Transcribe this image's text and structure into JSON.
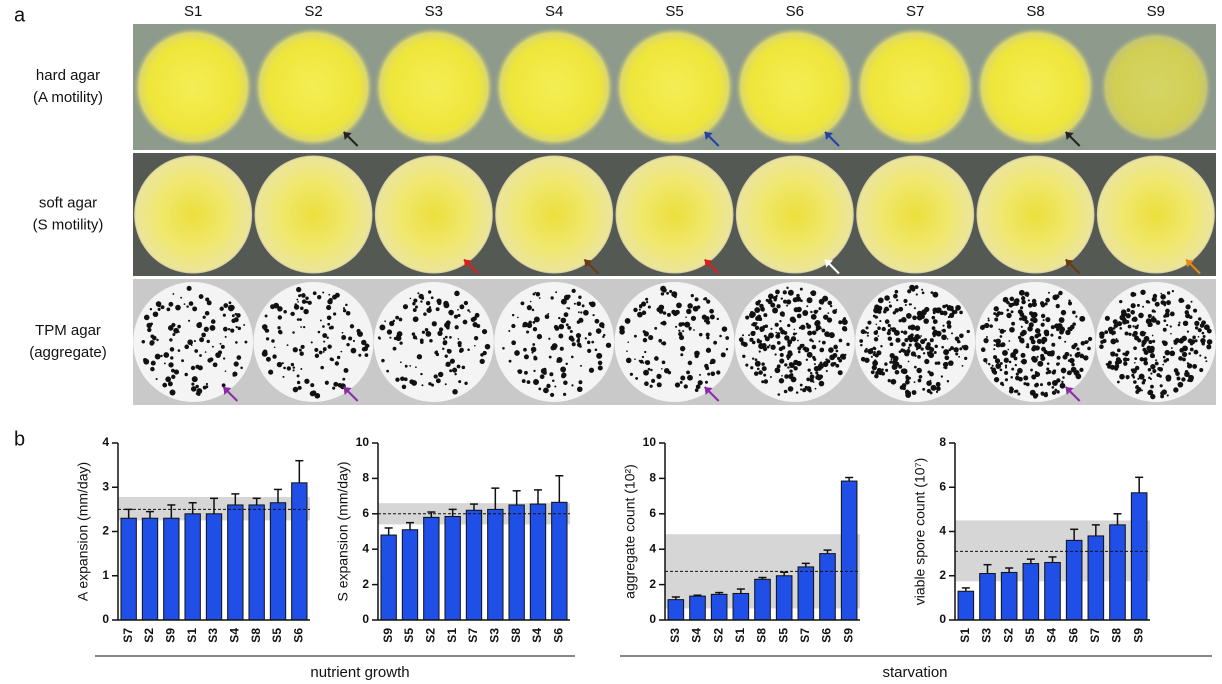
{
  "figure": {
    "panel_a": "a",
    "panel_b": "b",
    "columns": [
      "S1",
      "S2",
      "S3",
      "S4",
      "S5",
      "S6",
      "S7",
      "S8",
      "S9"
    ],
    "rows": [
      [
        "hard agar",
        "(A motility)"
      ],
      [
        "soft agar",
        "(S motility)"
      ],
      [
        "TPM agar",
        "(aggregate)"
      ]
    ],
    "groups": [
      "nutrient growth",
      "starvation"
    ]
  },
  "chart_data": [
    {
      "type": "bar",
      "y_label": "A expansion (mm/day)",
      "categories": [
        "S7",
        "S2",
        "S9",
        "S1",
        "S3",
        "S4",
        "S8",
        "S5",
        "S6"
      ],
      "values": [
        2.3,
        2.3,
        2.3,
        2.4,
        2.4,
        2.6,
        2.6,
        2.65,
        3.1
      ],
      "errors": [
        0.2,
        0.15,
        0.3,
        0.25,
        0.35,
        0.25,
        0.15,
        0.3,
        0.5
      ],
      "mean": 2.5,
      "band": [
        2.25,
        2.78
      ],
      "ylim": [
        0,
        4
      ],
      "yticks": [
        0,
        1,
        2,
        3,
        4
      ],
      "color": "#1f4fe6"
    },
    {
      "type": "bar",
      "y_label": "S expansion (mm/day)",
      "categories": [
        "S9",
        "S5",
        "S2",
        "S1",
        "S7",
        "S3",
        "S8",
        "S4",
        "S6"
      ],
      "values": [
        4.8,
        5.1,
        5.8,
        5.85,
        6.2,
        6.25,
        6.5,
        6.55,
        6.65
      ],
      "errors": [
        0.4,
        0.4,
        0.3,
        0.4,
        0.35,
        1.2,
        0.8,
        0.8,
        1.5
      ],
      "mean": 6.0,
      "band": [
        5.4,
        6.6
      ],
      "ylim": [
        0,
        10
      ],
      "yticks": [
        0,
        2,
        4,
        6,
        8,
        10
      ],
      "color": "#1f4fe6"
    },
    {
      "type": "bar",
      "y_label": "aggregate count (10²)",
      "categories": [
        "S3",
        "S4",
        "S2",
        "S1",
        "S8",
        "S5",
        "S7",
        "S6",
        "S9"
      ],
      "values": [
        1.15,
        1.35,
        1.45,
        1.5,
        2.3,
        2.5,
        3.0,
        3.75,
        7.85
      ],
      "errors": [
        0.15,
        0.05,
        0.1,
        0.25,
        0.1,
        0.2,
        0.2,
        0.2,
        0.2
      ],
      "mean": 2.75,
      "band": [
        0.65,
        4.85
      ],
      "ylim": [
        0,
        10
      ],
      "yticks": [
        0,
        2,
        4,
        6,
        8,
        10
      ],
      "color": "#1f4fe6"
    },
    {
      "type": "bar",
      "y_label": "viable spore count (10⁷)",
      "categories": [
        "S1",
        "S3",
        "S2",
        "S5",
        "S4",
        "S6",
        "S7",
        "S8",
        "S9"
      ],
      "values": [
        1.3,
        2.1,
        2.15,
        2.55,
        2.6,
        3.6,
        3.8,
        4.3,
        5.75
      ],
      "errors": [
        0.15,
        0.4,
        0.2,
        0.2,
        0.25,
        0.5,
        0.5,
        0.5,
        0.7
      ],
      "mean": 3.1,
      "band": [
        1.75,
        4.5
      ],
      "ylim": [
        0,
        8
      ],
      "yticks": [
        0,
        2,
        4,
        6,
        8
      ],
      "color": "#1f4fe6"
    }
  ]
}
